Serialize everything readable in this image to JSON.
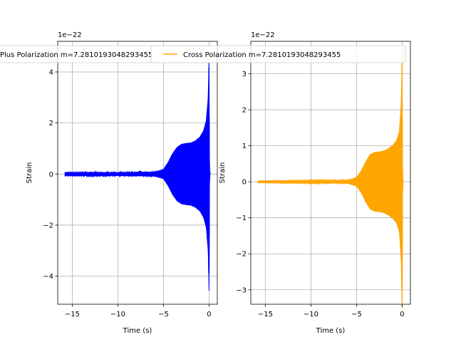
{
  "chart_data": [
    {
      "type": "line",
      "title": "",
      "xlabel": "Time (s)",
      "ylabel": "Strain",
      "offset_text": "1e−22",
      "grid": true,
      "xlim": [
        -16.6,
        0.9
      ],
      "ylim": [
        -5.1,
        5.2
      ],
      "xticks": [
        -15,
        -10,
        -5,
        0
      ],
      "xtick_labels": [
        "−15",
        "−10",
        "−5",
        "0"
      ],
      "yticks": [
        -4,
        -2,
        0,
        2,
        4
      ],
      "ytick_labels": [
        "−4",
        "−2",
        "0",
        "2",
        "4"
      ],
      "legend_position": "upper-center",
      "series": [
        {
          "name": "Plus Polarization m=7.2810193048293455",
          "color": "#0000ff",
          "x_range": [
            -15.8,
            0.15
          ],
          "envelope": [
            {
              "t": -15.8,
              "a": 0.05
            },
            {
              "t": -10.0,
              "a": 0.06
            },
            {
              "t": -6.0,
              "a": 0.08
            },
            {
              "t": -5.0,
              "a": 0.18
            },
            {
              "t": -4.5,
              "a": 0.45
            },
            {
              "t": -4.0,
              "a": 0.8
            },
            {
              "t": -3.5,
              "a": 1.05
            },
            {
              "t": -3.0,
              "a": 1.17
            },
            {
              "t": -2.5,
              "a": 1.2
            },
            {
              "t": -2.0,
              "a": 1.22
            },
            {
              "t": -1.5,
              "a": 1.3
            },
            {
              "t": -1.0,
              "a": 1.45
            },
            {
              "t": -0.6,
              "a": 1.7
            },
            {
              "t": -0.3,
              "a": 2.1
            },
            {
              "t": -0.1,
              "a": 3.0
            },
            {
              "t": -0.02,
              "a": 4.2
            },
            {
              "t": 0.0,
              "a": 4.9
            },
            {
              "t": 0.03,
              "a": 0.5
            },
            {
              "t": 0.1,
              "a": 0.0
            }
          ]
        }
      ]
    },
    {
      "type": "line",
      "title": "",
      "xlabel": "Time (s)",
      "ylabel": "Strain",
      "offset_text": "1e−22",
      "grid": true,
      "xlim": [
        -16.6,
        0.9
      ],
      "ylim": [
        -3.4,
        3.9
      ],
      "xticks": [
        -15,
        -10,
        -5,
        0
      ],
      "xtick_labels": [
        "−15",
        "−10",
        "−5",
        "0"
      ],
      "yticks": [
        -3,
        -2,
        -1,
        0,
        1,
        2,
        3
      ],
      "ytick_labels": [
        "−3",
        "−2",
        "−1",
        "0",
        "1",
        "2",
        "3"
      ],
      "legend_position": "upper-center",
      "series": [
        {
          "name": "Cross Polarization m=7.2810193048293455",
          "color": "#ffa500",
          "x_range": [
            -15.8,
            0.15
          ],
          "envelope": [
            {
              "t": -15.8,
              "a": 0.02
            },
            {
              "t": -10.0,
              "a": 0.03
            },
            {
              "t": -6.0,
              "a": 0.04
            },
            {
              "t": -5.0,
              "a": 0.12
            },
            {
              "t": -4.5,
              "a": 0.3
            },
            {
              "t": -4.0,
              "a": 0.55
            },
            {
              "t": -3.5,
              "a": 0.76
            },
            {
              "t": -3.0,
              "a": 0.82
            },
            {
              "t": -2.5,
              "a": 0.83
            },
            {
              "t": -2.0,
              "a": 0.86
            },
            {
              "t": -1.5,
              "a": 0.92
            },
            {
              "t": -1.0,
              "a": 1.02
            },
            {
              "t": -0.6,
              "a": 1.15
            },
            {
              "t": -0.3,
              "a": 1.4
            },
            {
              "t": -0.1,
              "a": 2.2
            },
            {
              "t": -0.02,
              "a": 3.3
            },
            {
              "t": 0.0,
              "a": 3.7
            },
            {
              "t": 0.03,
              "a": 0.4
            },
            {
              "t": 0.1,
              "a": 0.0
            }
          ]
        }
      ]
    }
  ]
}
